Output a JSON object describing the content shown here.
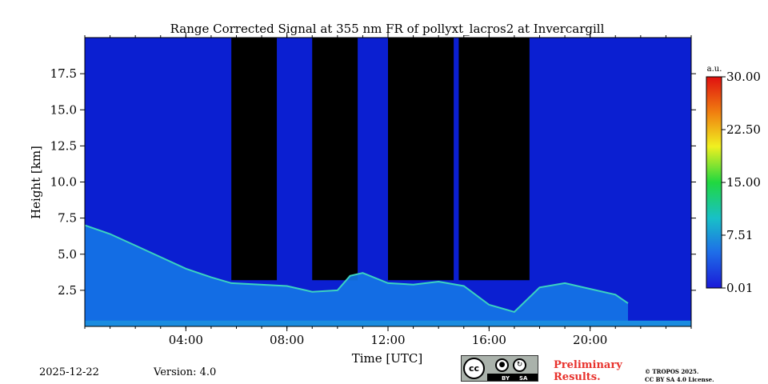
{
  "chart_data": {
    "type": "heatmap",
    "title": "Range Corrected Signal at 355 nm FR of pollyxt_lacros2 at Invercargill",
    "xlabel": "Time [UTC]",
    "ylabel": "Height [km]",
    "xlim": [
      0,
      24
    ],
    "ylim": [
      0,
      20
    ],
    "x_ticks": [
      4,
      8,
      12,
      16,
      20
    ],
    "x_tick_labels": [
      "04:00",
      "08:00",
      "12:00",
      "16:00",
      "20:00"
    ],
    "y_ticks": [
      2.5,
      5.0,
      7.5,
      10.0,
      12.5,
      15.0,
      17.5
    ],
    "y_tick_labels": [
      "2.5",
      "5.0",
      "7.5",
      "10.0",
      "12.5",
      "15.0",
      "17.5"
    ],
    "colorbar": {
      "label": "a.u.",
      "min": 0.01,
      "max": 30.0,
      "ticks": [
        0.01,
        7.51,
        15.0,
        22.5,
        30.0
      ],
      "tick_labels": [
        "0.01",
        "7.51",
        "15.00",
        "22.50",
        "30.00"
      ],
      "colors": [
        "#1a1ad8",
        "#1e6ee8",
        "#18c0c8",
        "#20d840",
        "#f0f020",
        "#f08010",
        "#e01010"
      ]
    },
    "layers": {
      "boundary_layer_top_km": [
        [
          0.0,
          7.0
        ],
        [
          1.0,
          6.4
        ],
        [
          2.0,
          5.6
        ],
        [
          3.0,
          4.8
        ],
        [
          4.0,
          4.0
        ],
        [
          5.0,
          3.4
        ],
        [
          5.8,
          3.0
        ],
        [
          8.0,
          2.8
        ],
        [
          9.0,
          2.4
        ],
        [
          10.0,
          2.5
        ],
        [
          10.5,
          3.5
        ],
        [
          11.0,
          3.7
        ],
        [
          12.0,
          3.0
        ],
        [
          13.0,
          2.9
        ],
        [
          14.0,
          3.1
        ],
        [
          15.0,
          2.8
        ],
        [
          16.0,
          1.5
        ],
        [
          17.0,
          1.0
        ],
        [
          18.0,
          2.7
        ],
        [
          19.0,
          3.0
        ],
        [
          20.0,
          2.6
        ],
        [
          21.0,
          2.2
        ],
        [
          21.5,
          1.6
        ]
      ],
      "clear_sky_periods_utc": [
        [
          5.8,
          7.6
        ],
        [
          9.0,
          10.8
        ],
        [
          12.0,
          14.6
        ],
        [
          14.8,
          17.6
        ]
      ]
    },
    "footer": {
      "date": "2025-12-22",
      "version": "Version: 4.0",
      "preliminary": "Preliminary Results.",
      "copyright_1": "© TROPOS 2025.",
      "copyright_2": "CC BY SA 4.0 License.",
      "license_badge": {
        "cc": "cc",
        "by": "BY",
        "sa": "SA"
      }
    }
  }
}
